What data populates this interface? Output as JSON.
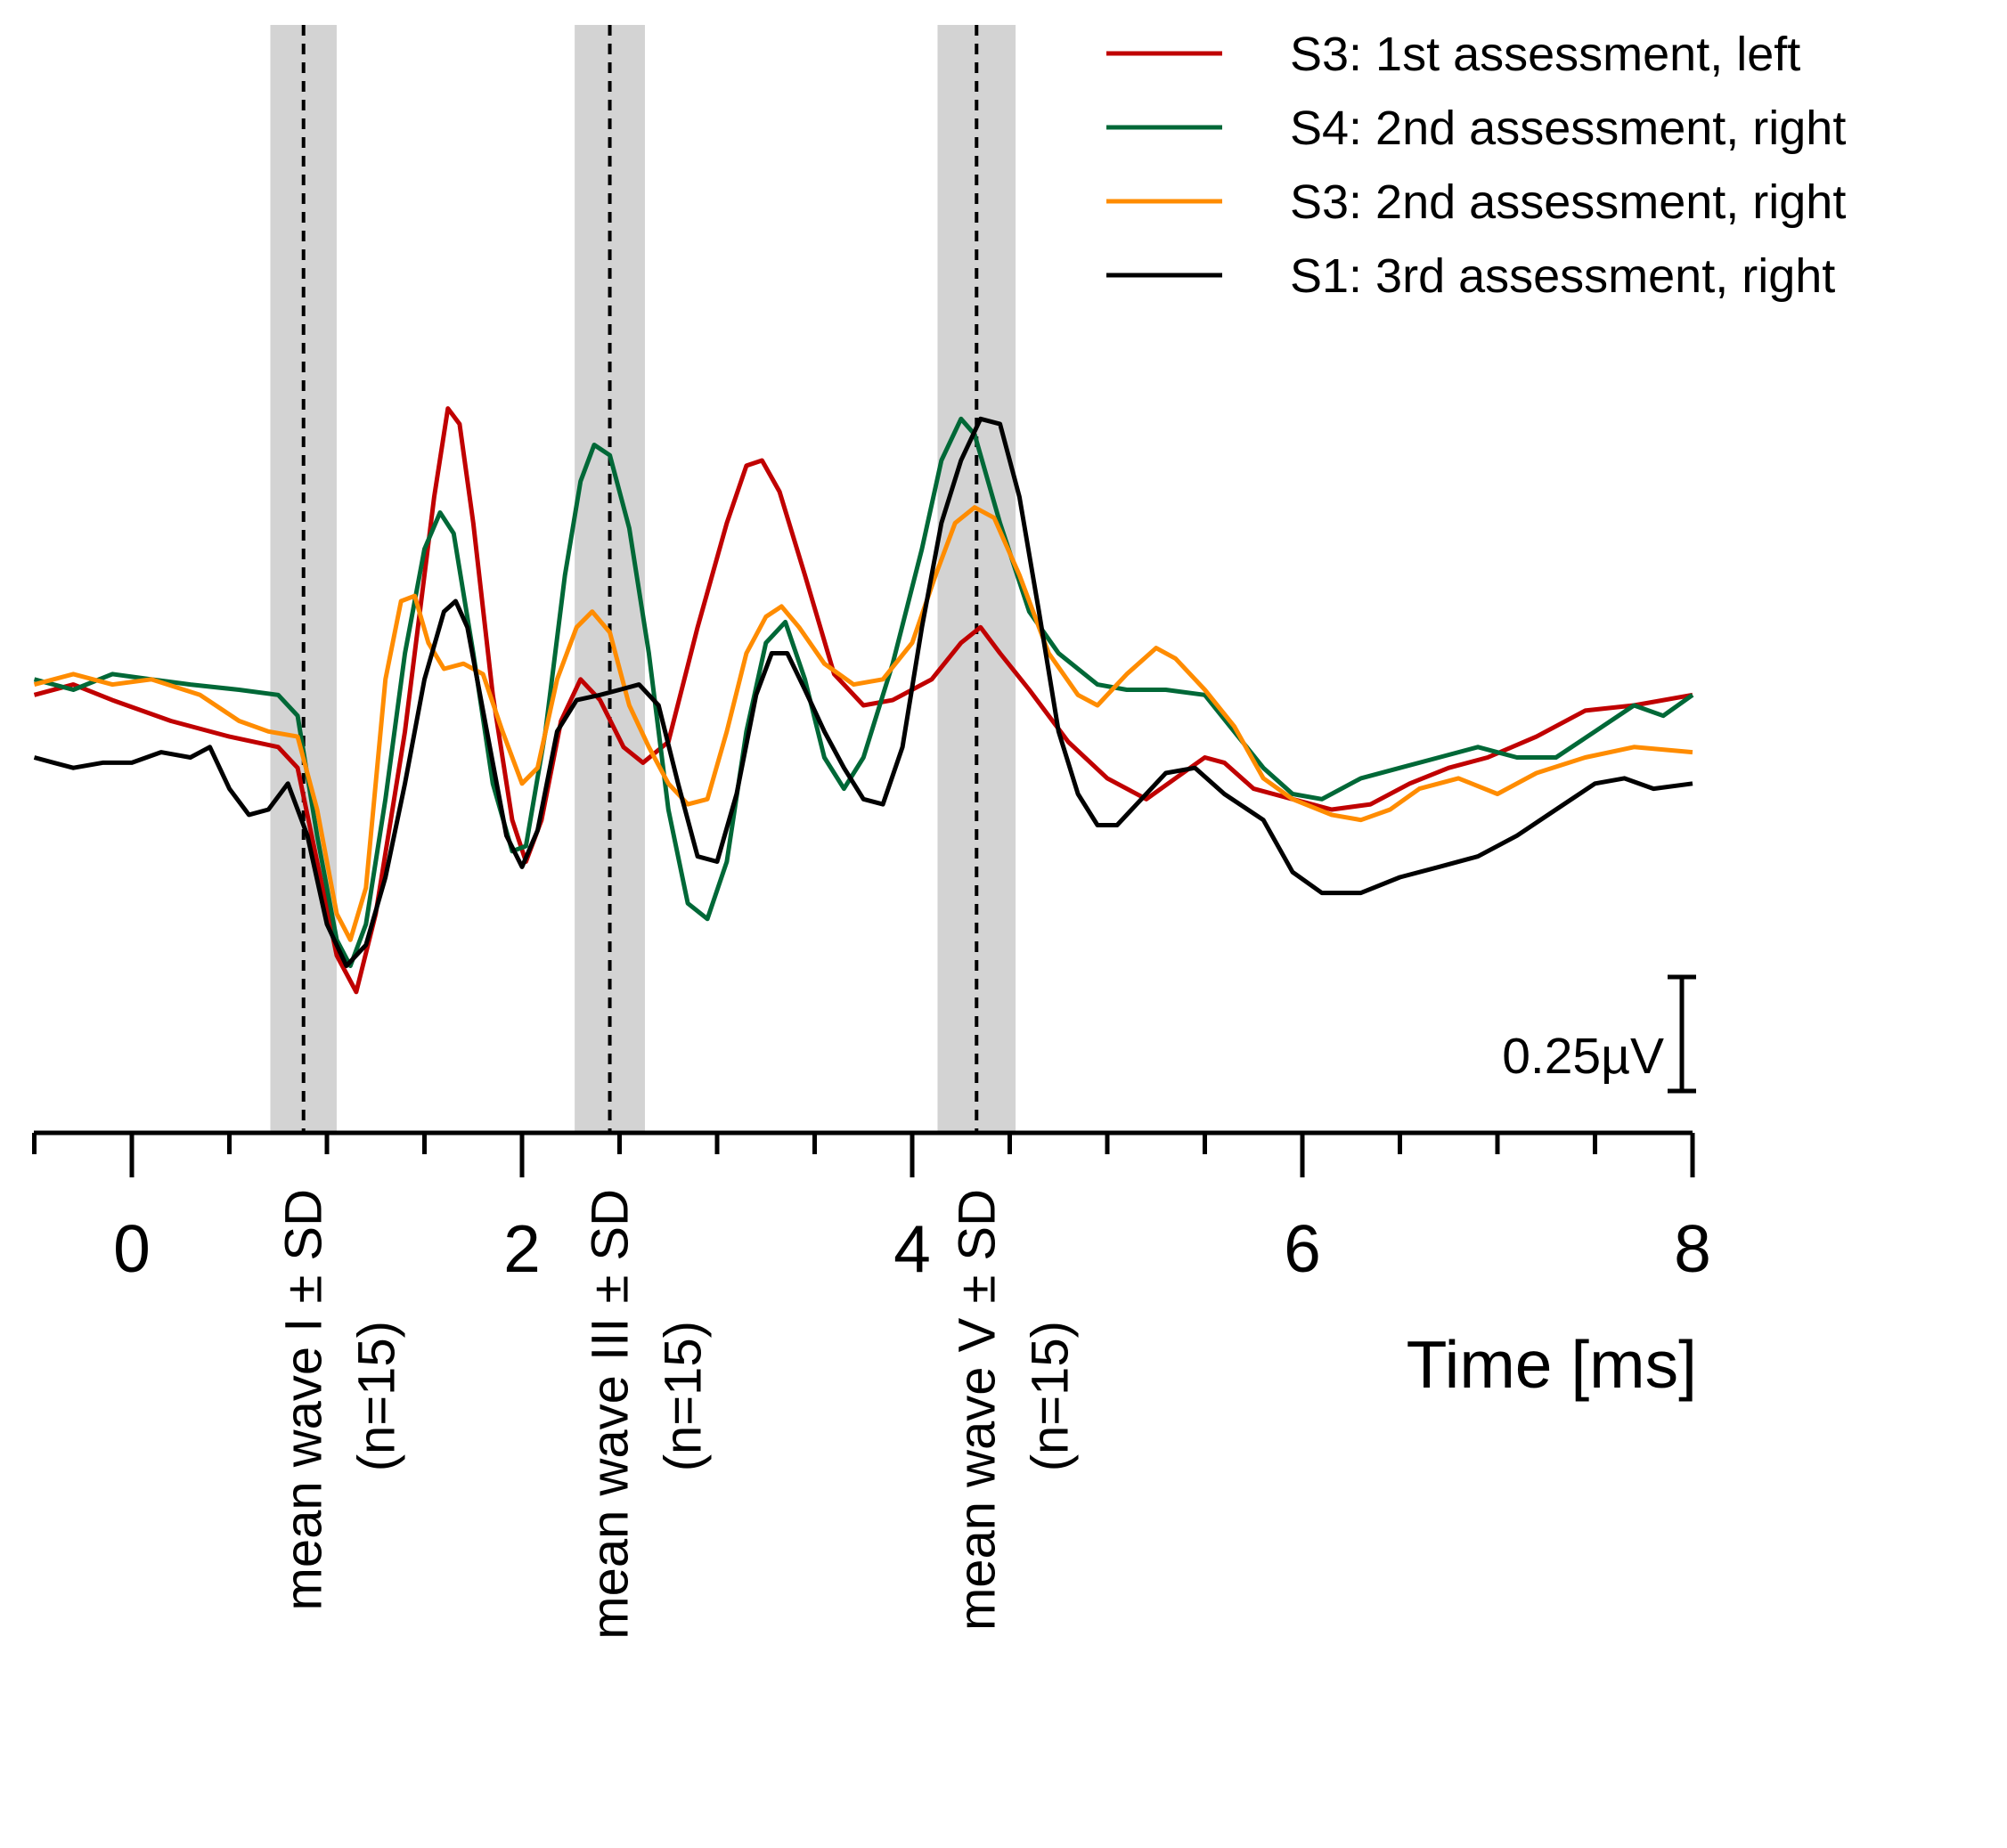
{
  "chart_data": {
    "type": "line",
    "title": "",
    "xlabel": "Time [ms]",
    "ylabel": "",
    "xlim": [
      -0.5,
      8
    ],
    "ylim": [
      -1.0,
      1.0
    ],
    "x_ticks": [
      0,
      2,
      4,
      6,
      8
    ],
    "x_tick_labels": [
      "0",
      "2",
      "4",
      "6",
      "8"
    ],
    "grid": false,
    "legend_position": "top-right",
    "scale_bar": {
      "label": "0.25µV",
      "value_uV": 0.25
    },
    "bands": [
      {
        "center": 0.88,
        "sd": 0.17,
        "line1": "mean wave I ± SD",
        "line2": "(n=15)"
      },
      {
        "center": 2.45,
        "sd": 0.18,
        "line1": "mean wave III ± SD",
        "line2": "(n=15)"
      },
      {
        "center": 4.33,
        "sd": 0.2,
        "line1": "mean wave V ± SD",
        "line2": "(n=15)"
      }
    ],
    "series": [
      {
        "name": "S3: 1st assessment, left",
        "color": "#c00000",
        "points": [
          [
            -0.5,
            0.02
          ],
          [
            -0.3,
            0.04
          ],
          [
            -0.1,
            0.01
          ],
          [
            0.2,
            -0.03
          ],
          [
            0.5,
            -0.06
          ],
          [
            0.75,
            -0.08
          ],
          [
            0.85,
            -0.12
          ],
          [
            0.95,
            -0.3
          ],
          [
            1.05,
            -0.48
          ],
          [
            1.15,
            -0.55
          ],
          [
            1.25,
            -0.4
          ],
          [
            1.4,
            -0.05
          ],
          [
            1.55,
            0.4
          ],
          [
            1.62,
            0.57
          ],
          [
            1.68,
            0.54
          ],
          [
            1.75,
            0.35
          ],
          [
            1.85,
            0.02
          ],
          [
            1.95,
            -0.22
          ],
          [
            2.02,
            -0.3
          ],
          [
            2.1,
            -0.22
          ],
          [
            2.2,
            -0.03
          ],
          [
            2.3,
            0.05
          ],
          [
            2.4,
            0.01
          ],
          [
            2.52,
            -0.08
          ],
          [
            2.62,
            -0.11
          ],
          [
            2.75,
            -0.07
          ],
          [
            2.9,
            0.15
          ],
          [
            3.05,
            0.35
          ],
          [
            3.15,
            0.46
          ],
          [
            3.23,
            0.47
          ],
          [
            3.32,
            0.41
          ],
          [
            3.45,
            0.25
          ],
          [
            3.6,
            0.06
          ],
          [
            3.75,
            0.0
          ],
          [
            3.9,
            0.01
          ],
          [
            4.1,
            0.05
          ],
          [
            4.25,
            0.12
          ],
          [
            4.35,
            0.15
          ],
          [
            4.45,
            0.1
          ],
          [
            4.6,
            0.03
          ],
          [
            4.8,
            -0.07
          ],
          [
            5.0,
            -0.14
          ],
          [
            5.2,
            -0.18
          ],
          [
            5.35,
            -0.14
          ],
          [
            5.5,
            -0.1
          ],
          [
            5.6,
            -0.11
          ],
          [
            5.75,
            -0.16
          ],
          [
            5.95,
            -0.18
          ],
          [
            6.15,
            -0.2
          ],
          [
            6.35,
            -0.19
          ],
          [
            6.55,
            -0.15
          ],
          [
            6.75,
            -0.12
          ],
          [
            6.95,
            -0.1
          ],
          [
            7.2,
            -0.06
          ],
          [
            7.45,
            -0.01
          ],
          [
            7.7,
            0.0
          ],
          [
            8.0,
            0.02
          ]
        ]
      },
      {
        "name": "S4: 2nd assessment, right",
        "color": "#006837",
        "points": [
          [
            -0.5,
            0.05
          ],
          [
            -0.3,
            0.03
          ],
          [
            -0.1,
            0.06
          ],
          [
            0.1,
            0.05
          ],
          [
            0.3,
            0.04
          ],
          [
            0.55,
            0.03
          ],
          [
            0.75,
            0.02
          ],
          [
            0.85,
            -0.02
          ],
          [
            0.95,
            -0.25
          ],
          [
            1.05,
            -0.45
          ],
          [
            1.12,
            -0.5
          ],
          [
            1.2,
            -0.42
          ],
          [
            1.3,
            -0.18
          ],
          [
            1.4,
            0.1
          ],
          [
            1.5,
            0.3
          ],
          [
            1.58,
            0.37
          ],
          [
            1.65,
            0.33
          ],
          [
            1.75,
            0.1
          ],
          [
            1.85,
            -0.15
          ],
          [
            1.95,
            -0.28
          ],
          [
            2.02,
            -0.27
          ],
          [
            2.12,
            -0.05
          ],
          [
            2.22,
            0.25
          ],
          [
            2.3,
            0.43
          ],
          [
            2.37,
            0.5
          ],
          [
            2.45,
            0.48
          ],
          [
            2.55,
            0.34
          ],
          [
            2.65,
            0.1
          ],
          [
            2.75,
            -0.2
          ],
          [
            2.85,
            -0.38
          ],
          [
            2.95,
            -0.41
          ],
          [
            3.05,
            -0.3
          ],
          [
            3.15,
            -0.05
          ],
          [
            3.25,
            0.12
          ],
          [
            3.35,
            0.16
          ],
          [
            3.45,
            0.05
          ],
          [
            3.55,
            -0.1
          ],
          [
            3.65,
            -0.16
          ],
          [
            3.75,
            -0.1
          ],
          [
            3.9,
            0.08
          ],
          [
            4.05,
            0.3
          ],
          [
            4.15,
            0.47
          ],
          [
            4.25,
            0.55
          ],
          [
            4.32,
            0.52
          ],
          [
            4.45,
            0.35
          ],
          [
            4.6,
            0.18
          ],
          [
            4.75,
            0.1
          ],
          [
            4.95,
            0.04
          ],
          [
            5.1,
            0.03
          ],
          [
            5.3,
            0.03
          ],
          [
            5.5,
            0.02
          ],
          [
            5.65,
            -0.05
          ],
          [
            5.8,
            -0.12
          ],
          [
            5.95,
            -0.17
          ],
          [
            6.1,
            -0.18
          ],
          [
            6.3,
            -0.14
          ],
          [
            6.5,
            -0.12
          ],
          [
            6.7,
            -0.1
          ],
          [
            6.9,
            -0.08
          ],
          [
            7.1,
            -0.1
          ],
          [
            7.3,
            -0.1
          ],
          [
            7.5,
            -0.05
          ],
          [
            7.7,
            0.0
          ],
          [
            7.85,
            -0.02
          ],
          [
            8.0,
            0.02
          ]
        ]
      },
      {
        "name": "S3: 2nd assessment, right",
        "color": "#ff8c00",
        "points": [
          [
            -0.5,
            0.04
          ],
          [
            -0.3,
            0.06
          ],
          [
            -0.1,
            0.04
          ],
          [
            0.1,
            0.05
          ],
          [
            0.35,
            0.02
          ],
          [
            0.55,
            -0.03
          ],
          [
            0.7,
            -0.05
          ],
          [
            0.85,
            -0.06
          ],
          [
            0.95,
            -0.2
          ],
          [
            1.05,
            -0.4
          ],
          [
            1.12,
            -0.45
          ],
          [
            1.2,
            -0.35
          ],
          [
            1.3,
            0.05
          ],
          [
            1.38,
            0.2
          ],
          [
            1.45,
            0.21
          ],
          [
            1.52,
            0.12
          ],
          [
            1.6,
            0.07
          ],
          [
            1.7,
            0.08
          ],
          [
            1.8,
            0.06
          ],
          [
            1.9,
            -0.05
          ],
          [
            2.0,
            -0.15
          ],
          [
            2.08,
            -0.12
          ],
          [
            2.18,
            0.05
          ],
          [
            2.28,
            0.15
          ],
          [
            2.36,
            0.18
          ],
          [
            2.45,
            0.14
          ],
          [
            2.55,
            0.0
          ],
          [
            2.65,
            -0.08
          ],
          [
            2.75,
            -0.15
          ],
          [
            2.85,
            -0.19
          ],
          [
            2.95,
            -0.18
          ],
          [
            3.05,
            -0.05
          ],
          [
            3.15,
            0.1
          ],
          [
            3.25,
            0.17
          ],
          [
            3.33,
            0.19
          ],
          [
            3.42,
            0.15
          ],
          [
            3.55,
            0.08
          ],
          [
            3.7,
            0.04
          ],
          [
            3.85,
            0.05
          ],
          [
            4.0,
            0.12
          ],
          [
            4.12,
            0.25
          ],
          [
            4.22,
            0.35
          ],
          [
            4.32,
            0.38
          ],
          [
            4.42,
            0.36
          ],
          [
            4.55,
            0.25
          ],
          [
            4.7,
            0.1
          ],
          [
            4.85,
            0.02
          ],
          [
            4.95,
            0.0
          ],
          [
            5.1,
            0.06
          ],
          [
            5.25,
            0.11
          ],
          [
            5.35,
            0.09
          ],
          [
            5.5,
            0.03
          ],
          [
            5.65,
            -0.04
          ],
          [
            5.8,
            -0.14
          ],
          [
            5.95,
            -0.18
          ],
          [
            6.15,
            -0.21
          ],
          [
            6.3,
            -0.22
          ],
          [
            6.45,
            -0.2
          ],
          [
            6.6,
            -0.16
          ],
          [
            6.8,
            -0.14
          ],
          [
            7.0,
            -0.17
          ],
          [
            7.2,
            -0.13
          ],
          [
            7.45,
            -0.1
          ],
          [
            7.7,
            -0.08
          ],
          [
            8.0,
            -0.09
          ]
        ]
      },
      {
        "name": "S1: 3rd assessment, right",
        "color": "#000000",
        "points": [
          [
            -0.5,
            -0.1
          ],
          [
            -0.4,
            -0.11
          ],
          [
            -0.3,
            -0.12
          ],
          [
            -0.15,
            -0.11
          ],
          [
            0.0,
            -0.11
          ],
          [
            0.15,
            -0.09
          ],
          [
            0.3,
            -0.1
          ],
          [
            0.4,
            -0.08
          ],
          [
            0.5,
            -0.16
          ],
          [
            0.6,
            -0.21
          ],
          [
            0.7,
            -0.2
          ],
          [
            0.8,
            -0.15
          ],
          [
            0.9,
            -0.25
          ],
          [
            1.0,
            -0.42
          ],
          [
            1.1,
            -0.5
          ],
          [
            1.2,
            -0.46
          ],
          [
            1.3,
            -0.33
          ],
          [
            1.4,
            -0.15
          ],
          [
            1.5,
            0.05
          ],
          [
            1.6,
            0.18
          ],
          [
            1.66,
            0.2
          ],
          [
            1.72,
            0.15
          ],
          [
            1.82,
            -0.05
          ],
          [
            1.92,
            -0.25
          ],
          [
            2.0,
            -0.31
          ],
          [
            2.08,
            -0.24
          ],
          [
            2.18,
            -0.05
          ],
          [
            2.28,
            0.01
          ],
          [
            2.4,
            0.02
          ],
          [
            2.5,
            0.03
          ],
          [
            2.6,
            0.04
          ],
          [
            2.7,
            0.0
          ],
          [
            2.8,
            -0.15
          ],
          [
            2.9,
            -0.29
          ],
          [
            3.0,
            -0.3
          ],
          [
            3.1,
            -0.17
          ],
          [
            3.2,
            0.02
          ],
          [
            3.28,
            0.1
          ],
          [
            3.36,
            0.1
          ],
          [
            3.45,
            0.03
          ],
          [
            3.55,
            -0.05
          ],
          [
            3.65,
            -0.12
          ],
          [
            3.75,
            -0.18
          ],
          [
            3.85,
            -0.19
          ],
          [
            3.95,
            -0.08
          ],
          [
            4.05,
            0.15
          ],
          [
            4.15,
            0.35
          ],
          [
            4.25,
            0.47
          ],
          [
            4.35,
            0.55
          ],
          [
            4.45,
            0.54
          ],
          [
            4.55,
            0.4
          ],
          [
            4.65,
            0.18
          ],
          [
            4.75,
            -0.05
          ],
          [
            4.85,
            -0.17
          ],
          [
            4.95,
            -0.23
          ],
          [
            5.05,
            -0.23
          ],
          [
            5.15,
            -0.19
          ],
          [
            5.3,
            -0.13
          ],
          [
            5.45,
            -0.12
          ],
          [
            5.6,
            -0.17
          ],
          [
            5.8,
            -0.22
          ],
          [
            5.95,
            -0.32
          ],
          [
            6.1,
            -0.36
          ],
          [
            6.3,
            -0.36
          ],
          [
            6.5,
            -0.33
          ],
          [
            6.7,
            -0.31
          ],
          [
            6.9,
            -0.29
          ],
          [
            7.1,
            -0.25
          ],
          [
            7.3,
            -0.2
          ],
          [
            7.5,
            -0.15
          ],
          [
            7.65,
            -0.14
          ],
          [
            7.8,
            -0.16
          ],
          [
            8.0,
            -0.15
          ]
        ]
      }
    ]
  }
}
